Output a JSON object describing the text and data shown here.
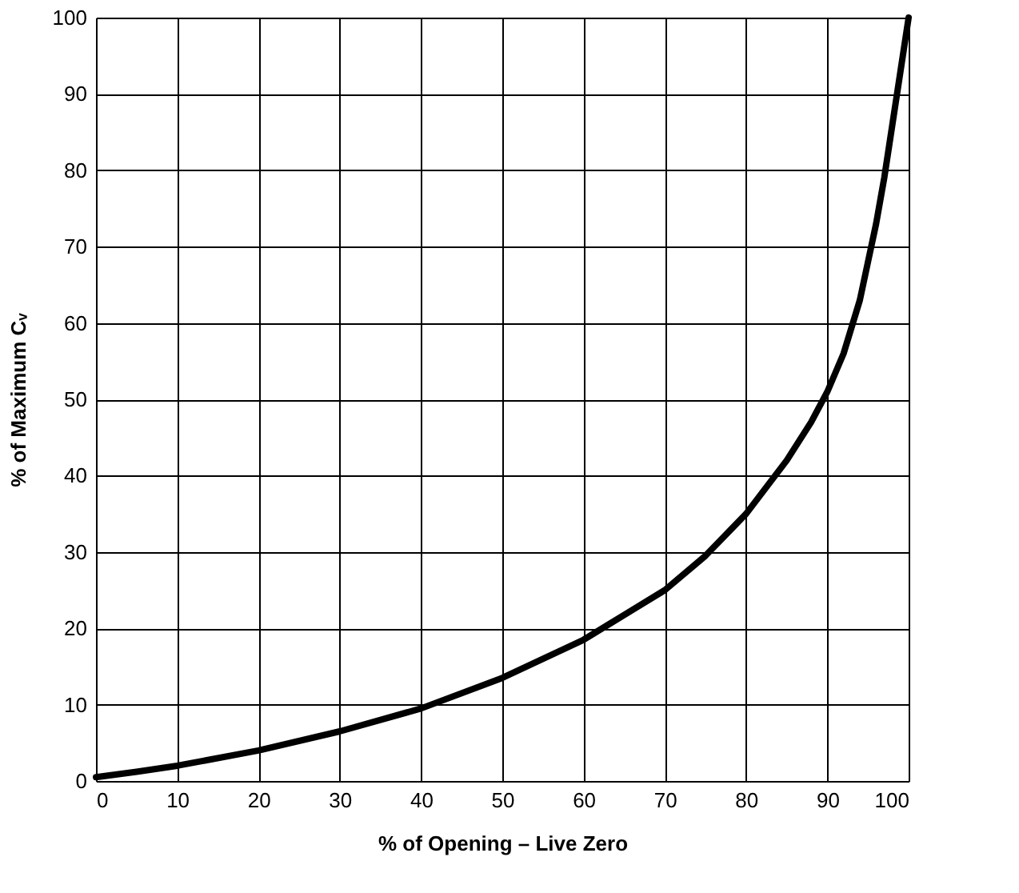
{
  "chart_data": {
    "type": "line",
    "xlabel": "% of Opening – Live Zero",
    "ylabel": "% of Maximum Cᵥ",
    "x": [
      0,
      5,
      10,
      20,
      30,
      40,
      50,
      60,
      70,
      75,
      80,
      85,
      88,
      90,
      92,
      94,
      95,
      96,
      97,
      98,
      99,
      100
    ],
    "series": [
      {
        "color": "#000000",
        "values": [
          0.5,
          1.2,
          2,
          4,
          6.5,
          9.5,
          13.5,
          18.5,
          25,
          29.5,
          35,
          42,
          47,
          51,
          56,
          63,
          68,
          73,
          79,
          86,
          93,
          100
        ]
      }
    ],
    "xlim": [
      0,
      100
    ],
    "ylim": [
      0,
      100
    ],
    "xticks": [
      0,
      10,
      20,
      30,
      40,
      50,
      60,
      70,
      80,
      90,
      100
    ],
    "yticks": [
      0,
      10,
      20,
      30,
      40,
      50,
      60,
      70,
      80,
      90,
      100
    ],
    "grid": true,
    "marker": "none",
    "line_style": "solid"
  }
}
